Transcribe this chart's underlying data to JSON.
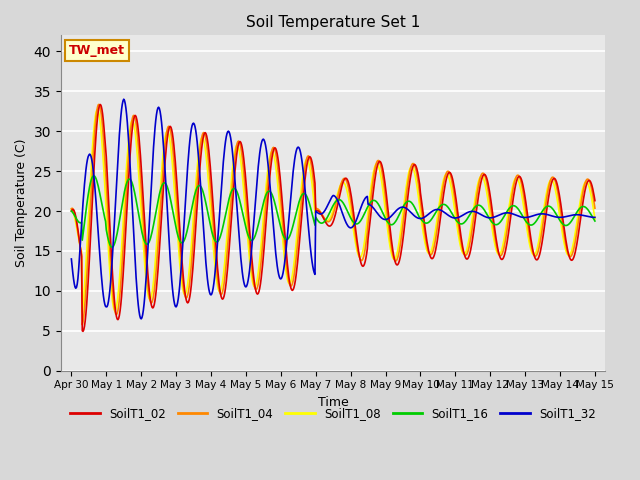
{
  "title": "Soil Temperature Set 1",
  "xlabel": "Time",
  "ylabel": "Soil Temperature (C)",
  "ylim": [
    0,
    42
  ],
  "yticks": [
    0,
    5,
    10,
    15,
    20,
    25,
    30,
    35,
    40
  ],
  "background_color": "#e8e8e8",
  "plot_bg_color": "#dcdcdc",
  "annotation_text": "TW_met",
  "annotation_box_color": "#ffffcc",
  "annotation_box_edgecolor": "#cc8800",
  "annotation_text_color": "#cc0000",
  "series_colors": {
    "SoilT1_02": "#dd0000",
    "SoilT1_04": "#ff8800",
    "SoilT1_08": "#ffff00",
    "SoilT1_16": "#00cc00",
    "SoilT1_32": "#0000cc"
  },
  "legend_labels": [
    "SoilT1_02",
    "SoilT1_04",
    "SoilT1_08",
    "SoilT1_16",
    "SoilT1_32"
  ],
  "xtick_labels": [
    "Apr 30",
    "May 1",
    "May 2",
    "May 3",
    "May 4",
    "May 5",
    "May 6",
    "May 7",
    "May 8",
    "May 9",
    "May 10",
    "May 11",
    "May 12",
    "May 13",
    "May 14",
    "May 15"
  ],
  "xtick_positions": [
    0,
    1,
    2,
    3,
    4,
    5,
    6,
    7,
    8,
    9,
    10,
    11,
    12,
    13,
    14,
    15
  ]
}
